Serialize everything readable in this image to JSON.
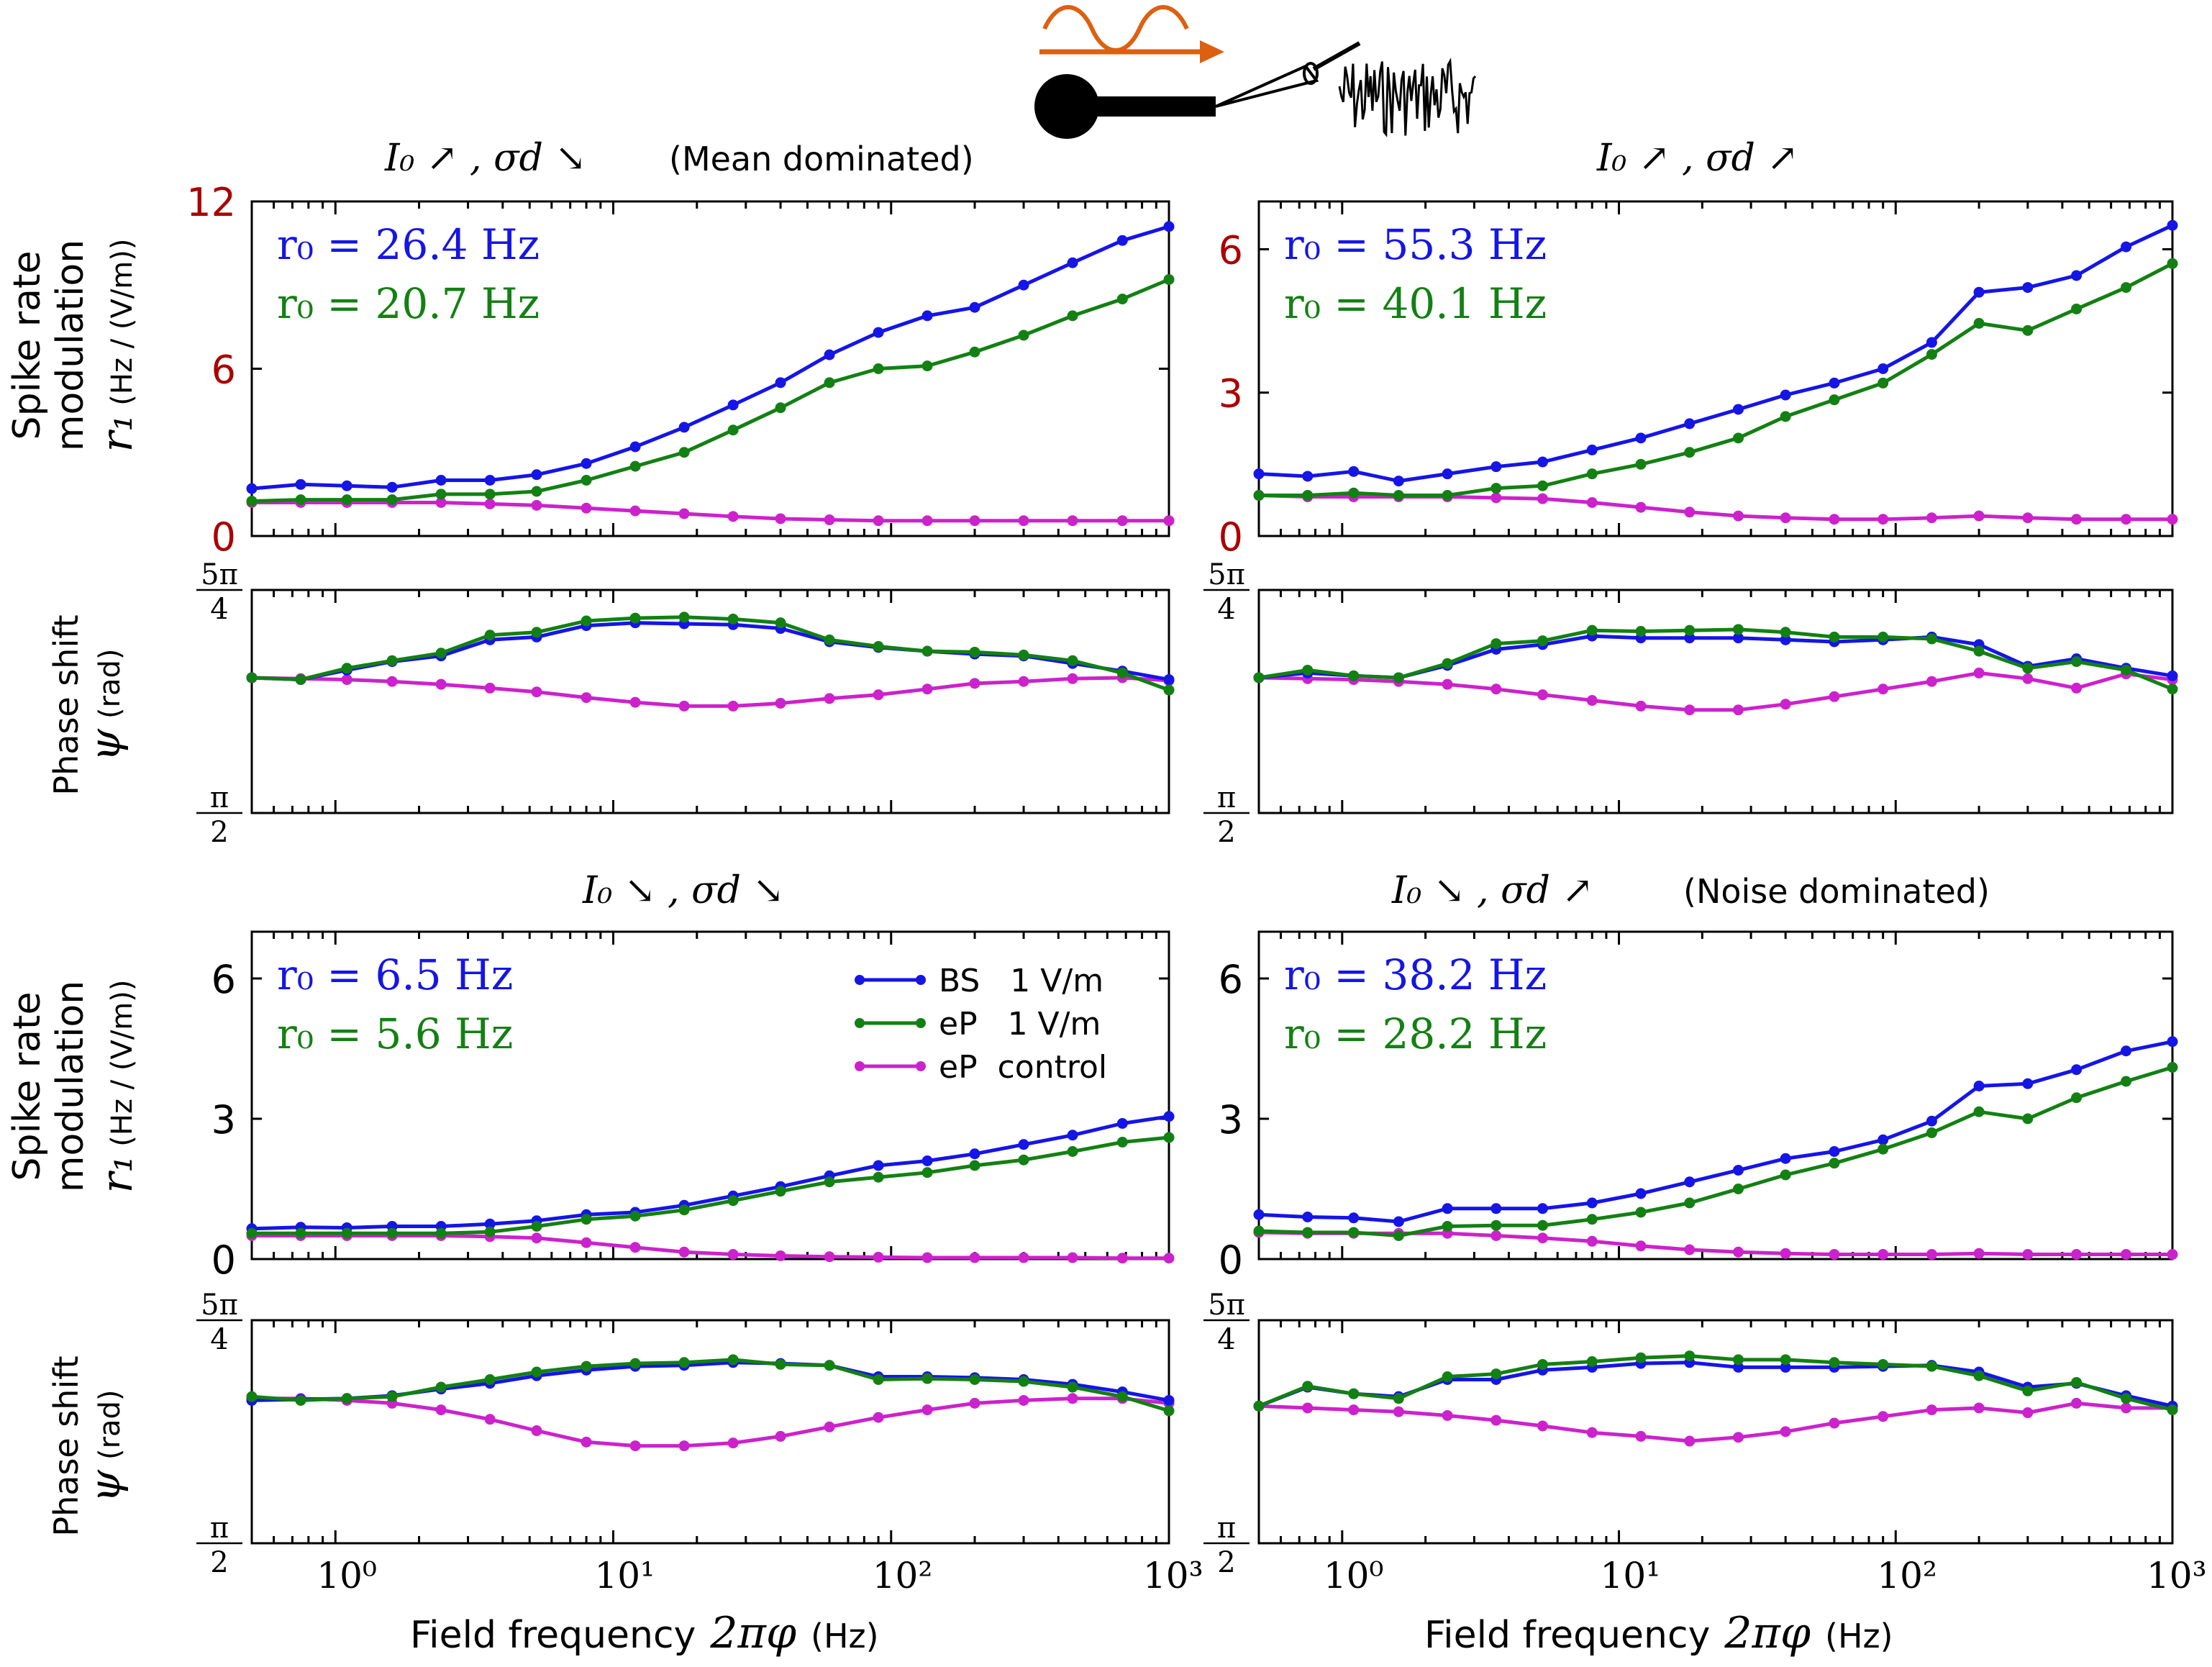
{
  "colors": {
    "bs": "#1515e6",
    "ep": "#138013",
    "control": "#cc22cc",
    "rate_tick": "#aa0000",
    "stim_arrow": "#dd6011",
    "axis": "#000000"
  },
  "titles": {
    "panel_a": "I₀ ↗ , σd ↘",
    "panel_a_note": "(Mean dominated)",
    "panel_b": "I₀ ↗ , σd ↗",
    "panel_c": "I₀ ↘ , σd ↘",
    "panel_d": "I₀ ↘ , σd ↗",
    "panel_d_note": "(Noise dominated)"
  },
  "ylabels": {
    "rate_line1": "Spike rate",
    "rate_line2": "modulation",
    "rate_symbol": "r₁",
    "rate_unit": "(Hz / (V/m))",
    "phase_line1": "Phase shift",
    "phase_symbol": "ψ",
    "phase_unit": "(rad)"
  },
  "xlabel": {
    "text": "Field frequency",
    "symbol": "2πφ",
    "unit": "(Hz)"
  },
  "legend": {
    "bs": "BS   1 V/m",
    "ep": "eP   1 V/m",
    "control": "eP  control"
  },
  "phase_ticks": {
    "top_num": "5π",
    "top_den": "4",
    "bottom_num": "π",
    "bottom_den": "2"
  },
  "chart_data": [
    {
      "type": "line",
      "panel": "top-left rate",
      "title": "I₀ ↗ , σd ↘ (Mean dominated)",
      "xlabel": "Field frequency 2πφ (Hz)",
      "ylabel": "Spike rate modulation r₁ (Hz / (V/m))",
      "xscale": "log",
      "xlim": [
        0.5,
        1000
      ],
      "ylim": [
        0,
        12
      ],
      "yticks": [
        "0",
        "6",
        "12"
      ],
      "xticks": [
        "10⁰",
        "10¹",
        "10²",
        "10³"
      ],
      "annotations": [
        "r₀ = 26.4 Hz",
        "r₀ = 20.7 Hz"
      ],
      "x": [
        0.5,
        0.75,
        1.1,
        1.6,
        2.4,
        3.6,
        5.3,
        8,
        12,
        18,
        27,
        40,
        60,
        90,
        135,
        200,
        300,
        450,
        680,
        1000
      ],
      "series": [
        {
          "name": "BS 1 V/m",
          "values": [
            1.7,
            1.85,
            1.8,
            1.75,
            2.0,
            2.0,
            2.2,
            2.6,
            3.2,
            3.9,
            4.7,
            5.5,
            6.5,
            7.3,
            7.9,
            8.2,
            9.0,
            9.8,
            10.6,
            11.1
          ]
        },
        {
          "name": "eP 1 V/m",
          "values": [
            1.25,
            1.3,
            1.3,
            1.3,
            1.5,
            1.5,
            1.6,
            2.0,
            2.5,
            3.0,
            3.8,
            4.6,
            5.5,
            6.0,
            6.1,
            6.6,
            7.2,
            7.9,
            8.5,
            9.2
          ]
        },
        {
          "name": "eP control",
          "values": [
            1.2,
            1.2,
            1.2,
            1.2,
            1.2,
            1.15,
            1.1,
            1.0,
            0.9,
            0.8,
            0.7,
            0.62,
            0.58,
            0.55,
            0.55,
            0.55,
            0.55,
            0.55,
            0.55,
            0.55
          ]
        }
      ]
    },
    {
      "type": "line",
      "panel": "top-left phase",
      "ylabel": "Phase shift ψ (rad)",
      "xscale": "log",
      "xlim": [
        0.5,
        1000
      ],
      "ylim": [
        1.5708,
        3.927
      ],
      "yticks": [
        "π/2",
        "5π/4"
      ],
      "x": [
        0.5,
        0.75,
        1.1,
        1.6,
        2.4,
        3.6,
        5.3,
        8,
        12,
        18,
        27,
        40,
        60,
        90,
        135,
        200,
        300,
        450,
        680,
        1000
      ],
      "series": [
        {
          "name": "BS 1 V/m",
          "values": [
            3.0,
            2.98,
            3.08,
            3.17,
            3.23,
            3.4,
            3.43,
            3.55,
            3.58,
            3.57,
            3.56,
            3.52,
            3.38,
            3.32,
            3.28,
            3.25,
            3.23,
            3.15,
            3.07,
            2.98
          ]
        },
        {
          "name": "eP 1 V/m",
          "values": [
            3.0,
            2.98,
            3.1,
            3.18,
            3.26,
            3.45,
            3.48,
            3.6,
            3.63,
            3.64,
            3.62,
            3.58,
            3.4,
            3.33,
            3.28,
            3.27,
            3.24,
            3.18,
            3.05,
            2.87
          ]
        },
        {
          "name": "eP control",
          "values": [
            3.0,
            2.99,
            2.98,
            2.96,
            2.93,
            2.89,
            2.85,
            2.79,
            2.74,
            2.7,
            2.7,
            2.73,
            2.78,
            2.82,
            2.88,
            2.94,
            2.96,
            2.99,
            3.0,
            2.97
          ]
        }
      ]
    },
    {
      "type": "line",
      "panel": "top-right rate",
      "title": "I₀ ↗ , σd ↗",
      "xscale": "log",
      "xlim": [
        0.5,
        1000
      ],
      "ylim": [
        0,
        7
      ],
      "yticks": [
        "0",
        "3",
        "6"
      ],
      "annotations": [
        "r₀ = 55.3 Hz",
        "r₀ = 40.1 Hz"
      ],
      "x": [
        0.5,
        0.75,
        1.1,
        1.6,
        2.4,
        3.6,
        5.3,
        8,
        12,
        18,
        27,
        40,
        60,
        90,
        135,
        200,
        300,
        450,
        680,
        1000
      ],
      "series": [
        {
          "name": "BS 1 V/m",
          "values": [
            1.3,
            1.25,
            1.35,
            1.15,
            1.3,
            1.45,
            1.55,
            1.8,
            2.05,
            2.35,
            2.65,
            2.95,
            3.2,
            3.5,
            4.05,
            5.1,
            5.2,
            5.45,
            6.05,
            6.5
          ]
        },
        {
          "name": "eP 1 V/m",
          "values": [
            0.85,
            0.85,
            0.9,
            0.85,
            0.85,
            1.0,
            1.05,
            1.3,
            1.5,
            1.75,
            2.05,
            2.5,
            2.85,
            3.2,
            3.8,
            4.45,
            4.3,
            4.75,
            5.2,
            5.7
          ]
        },
        {
          "name": "eP control",
          "values": [
            0.85,
            0.82,
            0.82,
            0.82,
            0.82,
            0.8,
            0.78,
            0.7,
            0.6,
            0.5,
            0.42,
            0.38,
            0.35,
            0.35,
            0.38,
            0.42,
            0.38,
            0.35,
            0.35,
            0.35
          ]
        }
      ]
    },
    {
      "type": "line",
      "panel": "top-right phase",
      "xscale": "log",
      "xlim": [
        0.5,
        1000
      ],
      "ylim": [
        1.5708,
        3.927
      ],
      "yticks": [
        "π/2",
        "5π/4"
      ],
      "x": [
        0.5,
        0.75,
        1.1,
        1.6,
        2.4,
        3.6,
        5.3,
        8,
        12,
        18,
        27,
        40,
        60,
        90,
        135,
        200,
        300,
        450,
        680,
        1000
      ],
      "series": [
        {
          "name": "BS 1 V/m",
          "values": [
            3.0,
            3.05,
            3.02,
            3.0,
            3.13,
            3.3,
            3.35,
            3.44,
            3.42,
            3.42,
            3.42,
            3.4,
            3.38,
            3.4,
            3.43,
            3.35,
            3.12,
            3.2,
            3.1,
            3.02
          ]
        },
        {
          "name": "eP 1 V/m",
          "values": [
            3.0,
            3.08,
            3.02,
            3.0,
            3.15,
            3.36,
            3.39,
            3.5,
            3.49,
            3.5,
            3.51,
            3.48,
            3.43,
            3.43,
            3.41,
            3.28,
            3.1,
            3.17,
            3.08,
            2.88
          ]
        },
        {
          "name": "eP control",
          "values": [
            3.0,
            2.99,
            2.98,
            2.96,
            2.93,
            2.88,
            2.82,
            2.76,
            2.7,
            2.66,
            2.66,
            2.72,
            2.8,
            2.88,
            2.96,
            3.05,
            2.99,
            2.89,
            3.04,
            2.98
          ]
        }
      ]
    },
    {
      "type": "line",
      "panel": "bottom-left rate",
      "title": "I₀ ↘ , σd ↘",
      "xscale": "log",
      "xlim": [
        0.5,
        1000
      ],
      "ylim": [
        0,
        7
      ],
      "yticks": [
        "0",
        "3",
        "6"
      ],
      "annotations": [
        "r₀ = 6.5 Hz",
        "r₀ = 5.6 Hz"
      ],
      "x": [
        0.5,
        0.75,
        1.1,
        1.6,
        2.4,
        3.6,
        5.3,
        8,
        12,
        18,
        27,
        40,
        60,
        90,
        135,
        200,
        300,
        450,
        680,
        1000
      ],
      "series": [
        {
          "name": "BS 1 V/m",
          "values": [
            0.65,
            0.68,
            0.67,
            0.7,
            0.7,
            0.75,
            0.82,
            0.95,
            1.0,
            1.15,
            1.35,
            1.55,
            1.78,
            2.0,
            2.1,
            2.25,
            2.45,
            2.65,
            2.9,
            3.05
          ]
        },
        {
          "name": "eP 1 V/m",
          "values": [
            0.55,
            0.55,
            0.55,
            0.55,
            0.55,
            0.58,
            0.7,
            0.85,
            0.92,
            1.05,
            1.25,
            1.45,
            1.65,
            1.75,
            1.85,
            2.0,
            2.12,
            2.3,
            2.5,
            2.6
          ]
        },
        {
          "name": "eP control",
          "values": [
            0.5,
            0.5,
            0.5,
            0.5,
            0.5,
            0.48,
            0.45,
            0.35,
            0.25,
            0.15,
            0.1,
            0.07,
            0.05,
            0.04,
            0.03,
            0.03,
            0.03,
            0.03,
            0.02,
            0.02
          ]
        }
      ]
    },
    {
      "type": "line",
      "panel": "bottom-left phase",
      "xscale": "log",
      "xlim": [
        0.5,
        1000
      ],
      "ylim": [
        1.5708,
        3.927
      ],
      "yticks": [
        "π/2",
        "5π/4"
      ],
      "x": [
        0.5,
        0.75,
        1.1,
        1.6,
        2.4,
        3.6,
        5.3,
        8,
        12,
        18,
        27,
        40,
        60,
        90,
        135,
        200,
        300,
        450,
        680,
        1000
      ],
      "series": [
        {
          "name": "BS 1 V/m",
          "values": [
            3.08,
            3.09,
            3.1,
            3.13,
            3.2,
            3.26,
            3.34,
            3.4,
            3.44,
            3.45,
            3.48,
            3.47,
            3.45,
            3.33,
            3.33,
            3.32,
            3.3,
            3.25,
            3.17,
            3.08
          ]
        },
        {
          "name": "eP 1 V/m",
          "values": [
            3.12,
            3.08,
            3.1,
            3.12,
            3.22,
            3.3,
            3.38,
            3.44,
            3.47,
            3.48,
            3.51,
            3.46,
            3.45,
            3.3,
            3.31,
            3.3,
            3.28,
            3.22,
            3.12,
            2.97
          ]
        },
        {
          "name": "eP control",
          "values": [
            3.1,
            3.1,
            3.08,
            3.05,
            2.98,
            2.88,
            2.76,
            2.64,
            2.6,
            2.6,
            2.63,
            2.7,
            2.8,
            2.9,
            2.98,
            3.05,
            3.08,
            3.1,
            3.1,
            3.05
          ]
        }
      ]
    },
    {
      "type": "line",
      "panel": "bottom-right rate",
      "title": "I₀ ↘ , σd ↗ (Noise dominated)",
      "xscale": "log",
      "xlim": [
        0.5,
        1000
      ],
      "ylim": [
        0,
        7
      ],
      "yticks": [
        "0",
        "3",
        "6"
      ],
      "annotations": [
        "r₀ = 38.2 Hz",
        "r₀ = 28.2 Hz"
      ],
      "x": [
        0.5,
        0.75,
        1.1,
        1.6,
        2.4,
        3.6,
        5.3,
        8,
        12,
        18,
        27,
        40,
        60,
        90,
        135,
        200,
        300,
        450,
        680,
        1000
      ],
      "series": [
        {
          "name": "BS 1 V/m",
          "values": [
            0.95,
            0.9,
            0.88,
            0.8,
            1.08,
            1.08,
            1.08,
            1.2,
            1.4,
            1.65,
            1.9,
            2.15,
            2.3,
            2.55,
            2.95,
            3.7,
            3.75,
            4.05,
            4.45,
            4.65
          ]
        },
        {
          "name": "eP 1 V/m",
          "values": [
            0.6,
            0.57,
            0.57,
            0.5,
            0.7,
            0.72,
            0.72,
            0.85,
            1.0,
            1.2,
            1.5,
            1.8,
            2.05,
            2.35,
            2.7,
            3.15,
            3.0,
            3.45,
            3.8,
            4.1
          ]
        },
        {
          "name": "eP control",
          "values": [
            0.57,
            0.55,
            0.55,
            0.55,
            0.55,
            0.5,
            0.45,
            0.38,
            0.28,
            0.2,
            0.15,
            0.12,
            0.1,
            0.1,
            0.1,
            0.12,
            0.1,
            0.1,
            0.1,
            0.1
          ]
        }
      ]
    },
    {
      "type": "line",
      "panel": "bottom-right phase",
      "xscale": "log",
      "xlim": [
        0.5,
        1000
      ],
      "ylim": [
        1.5708,
        3.927
      ],
      "yticks": [
        "π/2",
        "5π/4"
      ],
      "x": [
        0.5,
        0.75,
        1.1,
        1.6,
        2.4,
        3.6,
        5.3,
        8,
        12,
        18,
        27,
        40,
        60,
        90,
        135,
        200,
        300,
        450,
        680,
        1000
      ],
      "series": [
        {
          "name": "BS 1 V/m",
          "values": [
            3.02,
            3.22,
            3.15,
            3.12,
            3.3,
            3.3,
            3.4,
            3.43,
            3.47,
            3.48,
            3.43,
            3.43,
            3.43,
            3.44,
            3.45,
            3.38,
            3.22,
            3.26,
            3.13,
            3.02
          ]
        },
        {
          "name": "eP 1 V/m",
          "values": [
            3.02,
            3.23,
            3.15,
            3.1,
            3.33,
            3.36,
            3.46,
            3.49,
            3.53,
            3.55,
            3.51,
            3.51,
            3.48,
            3.46,
            3.44,
            3.34,
            3.18,
            3.27,
            3.1,
            2.98
          ]
        },
        {
          "name": "eP control",
          "values": [
            3.02,
            3.0,
            2.98,
            2.96,
            2.92,
            2.87,
            2.81,
            2.74,
            2.7,
            2.65,
            2.69,
            2.75,
            2.84,
            2.91,
            2.98,
            3.0,
            2.95,
            3.05,
            3.0,
            3.0
          ]
        }
      ]
    }
  ]
}
